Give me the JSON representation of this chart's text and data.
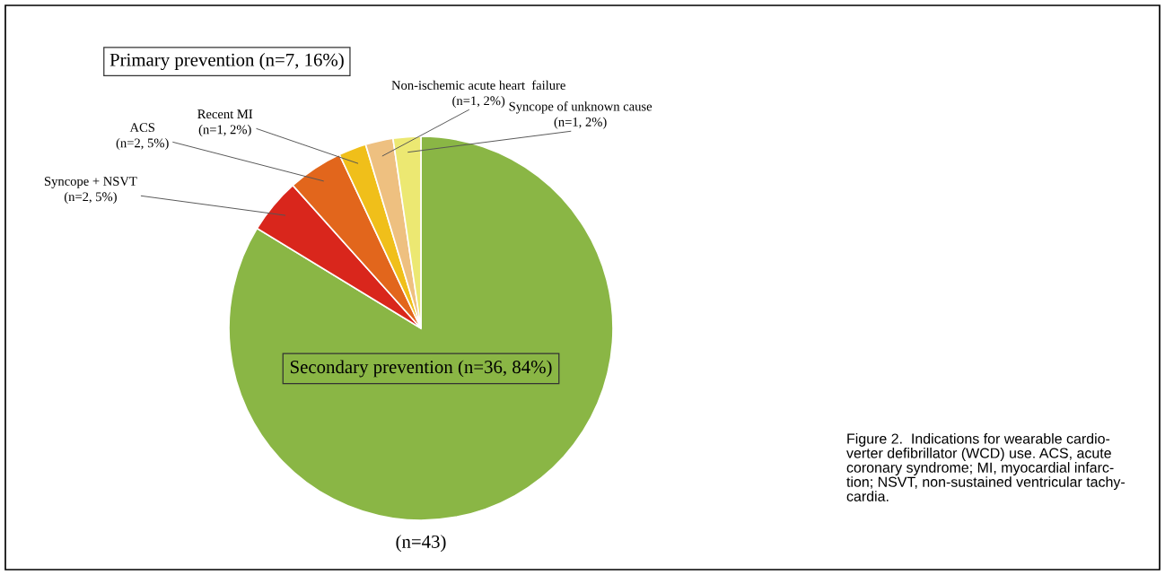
{
  "chart_data": {
    "type": "pie",
    "categories": [
      "Secondary prevention",
      "Syncope + NSVT",
      "ACS",
      "Recent MI",
      "Non-ischemic acute heart  failure",
      "Syncope of unknown cause"
    ],
    "values": [
      36,
      2,
      2,
      1,
      1,
      1
    ],
    "value_labels": [
      "(n=36, 84%)",
      "(n=2, 5%)",
      "(n=2, 5%)",
      "(n=1, 2%)",
      "(n=1, 2%)",
      "(n=1, 2%)"
    ],
    "colors": [
      "#8ab645",
      "#d9261c",
      "#e2661c",
      "#f0bf1a",
      "#eec080",
      "#ece872"
    ],
    "annotations": [
      "Primary prevention (n=7, 16%)",
      "(n=43)",
      "Figure 2.  Indications for wearable cardio-\nverter defibrillator (WCD) use. ACS, acute\ncoronary syndrome; MI, myocardial infarc-\ntion; NSVT, non-sustained ventricular tachy-\ncardia."
    ]
  }
}
